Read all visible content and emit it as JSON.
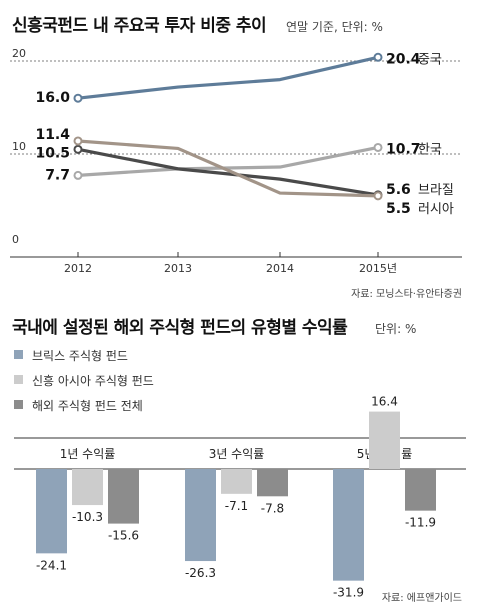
{
  "chart_data": [
    {
      "type": "line",
      "title": "신흥국펀드 내 주요국 투자 비중 추이",
      "subtitle": "연말 기준, 단위: %",
      "x": [
        "2012",
        "2013",
        "2014",
        "2015년"
      ],
      "ylim": [
        0,
        22
      ],
      "yticks": [
        "20",
        "10",
        "0"
      ],
      "series": [
        {
          "name": "중국",
          "values": [
            16.0,
            17.2,
            18.0,
            20.4
          ],
          "start_label": "16.0",
          "end_label": "20.4",
          "color": "#5e7c99"
        },
        {
          "name": "한국",
          "values": [
            7.7,
            8.4,
            8.6,
            10.7
          ],
          "start_label": "7.7",
          "end_label": "10.7",
          "color": "#a8a8a8"
        },
        {
          "name": "브라질",
          "values": [
            10.5,
            8.4,
            7.3,
            5.6
          ],
          "start_label": "10.5",
          "end_label": "5.6",
          "color": "#4a4a4a"
        },
        {
          "name": "러시아",
          "values": [
            11.4,
            10.6,
            5.8,
            5.5
          ],
          "start_label": "11.4",
          "end_label": "5.5",
          "color": "#a29488"
        }
      ],
      "source": "자료: 모닝스타·유안타증권"
    },
    {
      "type": "bar",
      "title": "국내에 설정된 해외 주식형 펀드의 유형별 수익률",
      "subtitle": "단위: %",
      "categories": [
        "1년 수익률",
        "3년 수익률",
        "5년 수익률"
      ],
      "series": [
        {
          "name": "브릭스 주식형 펀드",
          "values": [
            -24.1,
            -26.3,
            -31.9
          ],
          "labels": [
            "-24.1",
            "-26.3",
            "-31.9"
          ],
          "color": "#8fa3b8"
        },
        {
          "name": "신흥 아시아 주식형 펀드",
          "values": [
            -10.3,
            -7.1,
            16.4
          ],
          "labels": [
            "-10.3",
            "-7.1",
            "16.4"
          ],
          "color": "#cccccc"
        },
        {
          "name": "해외 주식형 펀드 전체",
          "values": [
            -15.6,
            -7.8,
            -11.9
          ],
          "labels": [
            "-15.6",
            "-7.8",
            "-11.9"
          ],
          "color": "#8c8c8c"
        }
      ],
      "source": "자료: 에프앤가이드"
    }
  ]
}
